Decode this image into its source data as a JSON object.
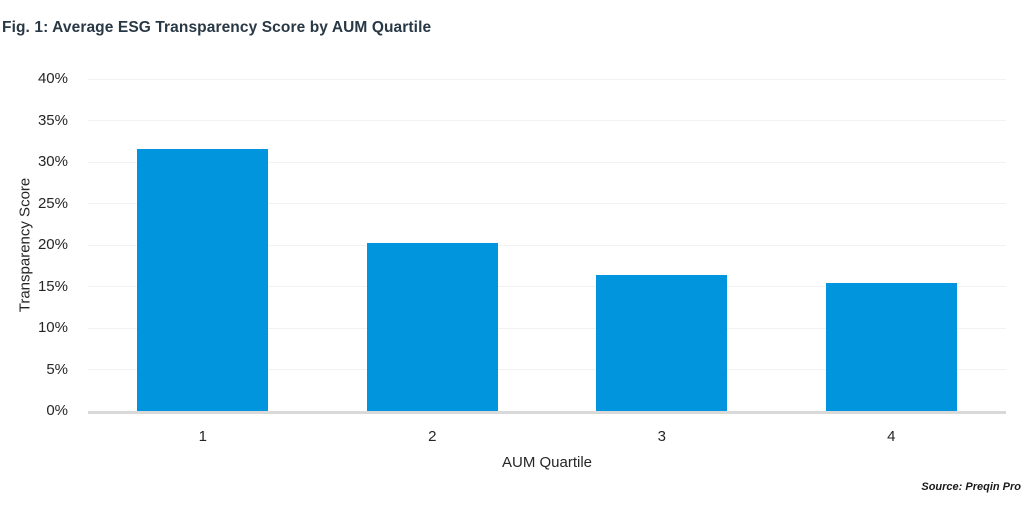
{
  "figure": {
    "title": "Fig. 1: Average ESG Transparency Score by AUM Quartile",
    "source": "Source: Preqin Pro"
  },
  "chart_data": {
    "type": "bar",
    "title": "Fig. 1: Average ESG Transparency Score by AUM Quartile",
    "categories": [
      "1",
      "2",
      "3",
      "4"
    ],
    "values": [
      31.6,
      20.2,
      16.4,
      15.4
    ],
    "xlabel": "AUM Quartile",
    "ylabel": "Transparency Score",
    "ylim": [
      0,
      40
    ],
    "ytick_step": 5,
    "ytick_labels": [
      "0%",
      "5%",
      "10%",
      "15%",
      "20%",
      "25%",
      "30%",
      "35%",
      "40%"
    ],
    "grid": "horizontal",
    "legend": "none",
    "bar_color": "#0095DC",
    "gridline_color": "#f2f2f2",
    "axis_line_color": "#d9d9d9",
    "source": "Source: Preqin Pro"
  }
}
